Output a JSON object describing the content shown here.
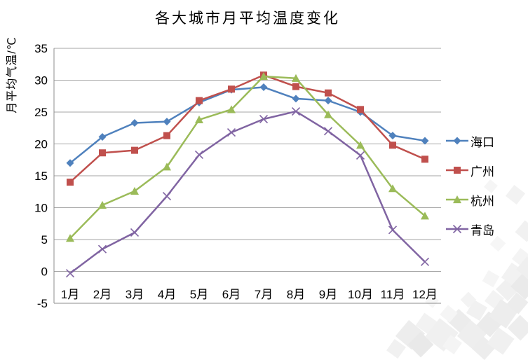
{
  "chart_data": {
    "type": "line",
    "title": "各大城市月平均温度变化",
    "ylabel": "月平均气温/℃",
    "xlabel": "",
    "categories": [
      "1月",
      "2月",
      "3月",
      "4月",
      "5月",
      "6月",
      "7月",
      "8月",
      "9月",
      "10月",
      "11月",
      "12月"
    ],
    "y_ticks": [
      35,
      30,
      25,
      20,
      15,
      10,
      5,
      0,
      -5
    ],
    "ylim": [
      -5,
      35
    ],
    "grid": true,
    "legend_position": "right",
    "colors": {
      "gridline": "#a6a6a6",
      "axis_border": "#8c8c8c",
      "text": "#000000"
    },
    "series": [
      {
        "name": "海口",
        "color": "#4F81BD",
        "marker": "diamond",
        "values": [
          17.0,
          21.1,
          23.3,
          23.5,
          26.5,
          28.5,
          28.9,
          27.1,
          26.8,
          25.0,
          21.3,
          20.5
        ]
      },
      {
        "name": "广州",
        "color": "#C0504D",
        "marker": "square",
        "values": [
          14.0,
          18.6,
          19.0,
          21.3,
          26.8,
          28.6,
          30.8,
          29.0,
          28.0,
          25.4,
          19.8,
          17.6
        ]
      },
      {
        "name": "杭州",
        "color": "#9BBB59",
        "marker": "triangle",
        "values": [
          5.2,
          10.4,
          12.6,
          16.4,
          23.8,
          25.4,
          30.6,
          30.3,
          24.6,
          19.8,
          13.0,
          8.7
        ]
      },
      {
        "name": "青岛",
        "color": "#8064A2",
        "marker": "x",
        "values": [
          -0.3,
          3.5,
          6.1,
          11.8,
          18.3,
          21.8,
          23.9,
          25.1,
          22.0,
          18.2,
          6.5,
          1.5
        ]
      }
    ]
  }
}
